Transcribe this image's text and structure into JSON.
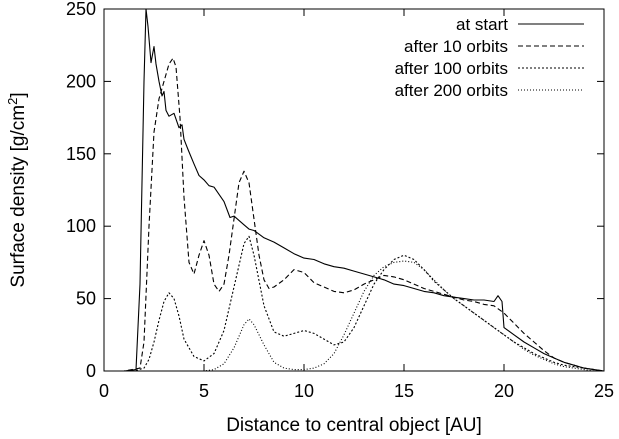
{
  "chart_data": {
    "type": "line",
    "xlabel": "Distance to central object [AU]",
    "ylabel": "Surface density [g/cm",
    "ylabel_superscript": "2",
    "ylabel_suffix": "]",
    "xlim": [
      0,
      25
    ],
    "ylim": [
      0,
      250
    ],
    "xticks": [
      0,
      5,
      10,
      15,
      20,
      25
    ],
    "yticks": [
      0,
      50,
      100,
      150,
      200,
      250
    ],
    "legend_position": "top-right",
    "grid": false,
    "series": [
      {
        "name": "at start",
        "dash": "solid",
        "x": [
          0.0,
          1.0,
          1.6,
          1.8,
          2.0,
          2.1,
          2.2,
          2.35,
          2.5,
          2.6,
          2.75,
          2.9,
          3.0,
          3.1,
          3.25,
          3.5,
          3.75,
          3.9,
          4.0,
          4.2,
          4.5,
          4.75,
          5.0,
          5.25,
          5.5,
          6.0,
          6.3,
          6.5,
          7.0,
          7.25,
          7.5,
          8.0,
          8.5,
          9.0,
          9.5,
          10.0,
          10.5,
          11.0,
          11.5,
          12.0,
          12.5,
          13.0,
          13.5,
          14.0,
          14.5,
          15.0,
          15.5,
          16.0,
          16.5,
          17.0,
          17.5,
          18.0,
          18.5,
          19.0,
          19.5,
          19.7,
          19.9,
          20.0,
          20.5,
          21.0,
          21.5,
          22.0,
          22.5,
          23.0,
          23.5,
          24.0,
          24.5,
          25.0
        ],
        "y": [
          0,
          0,
          1,
          60,
          200,
          250,
          238,
          213,
          224,
          212,
          200,
          190,
          193,
          180,
          176,
          178,
          168,
          170,
          160,
          153,
          143,
          135,
          132,
          128,
          127,
          117,
          106,
          107,
          101,
          98,
          97,
          92,
          89,
          85,
          81,
          78,
          77,
          74,
          72,
          71,
          69,
          67,
          65,
          63,
          60,
          59,
          57,
          55,
          54,
          52,
          51,
          50,
          49,
          49,
          48,
          52,
          48,
          30,
          25,
          20,
          16,
          12,
          9,
          6,
          4,
          2,
          1,
          0
        ]
      },
      {
        "name": "after 10 orbits",
        "dash": "5,3",
        "x": [
          0.0,
          1.0,
          1.8,
          2.0,
          2.25,
          2.5,
          2.75,
          3.0,
          3.25,
          3.45,
          3.6,
          3.8,
          4.0,
          4.25,
          4.5,
          4.75,
          5.0,
          5.25,
          5.5,
          5.75,
          6.0,
          6.25,
          6.5,
          6.75,
          7.0,
          7.25,
          7.5,
          7.75,
          8.0,
          8.25,
          8.5,
          9.0,
          9.5,
          10.0,
          10.5,
          11.0,
          11.5,
          12.0,
          12.5,
          13.0,
          13.5,
          14.0,
          14.5,
          15.0,
          15.5,
          16.0,
          16.5,
          17.0,
          17.5,
          18.0,
          18.5,
          19.0,
          19.5,
          20.0,
          20.5,
          21.0,
          21.5,
          22.0,
          22.5,
          23.0,
          23.5,
          24.0,
          24.5,
          25.0
        ],
        "y": [
          0,
          0,
          2,
          20,
          100,
          165,
          188,
          200,
          212,
          216,
          210,
          175,
          120,
          75,
          67,
          80,
          90,
          80,
          60,
          55,
          60,
          80,
          105,
          130,
          138,
          130,
          105,
          80,
          63,
          57,
          58,
          63,
          70,
          68,
          61,
          58,
          55,
          54,
          56,
          60,
          63,
          66,
          65,
          63,
          60,
          57,
          55,
          53,
          51,
          49,
          48,
          46,
          45,
          40,
          33,
          26,
          20,
          14,
          9,
          6,
          4,
          2,
          1,
          0
        ]
      },
      {
        "name": "after 100 orbits",
        "dash": "2,2",
        "x": [
          0.0,
          1.5,
          2.0,
          2.25,
          2.5,
          2.75,
          3.0,
          3.25,
          3.5,
          3.75,
          4.0,
          4.5,
          5.0,
          5.5,
          6.0,
          6.5,
          7.0,
          7.25,
          7.5,
          8.0,
          8.5,
          9.0,
          9.5,
          10.0,
          10.5,
          11.0,
          11.5,
          12.0,
          12.5,
          13.0,
          13.5,
          14.0,
          14.5,
          15.0,
          15.5,
          16.0,
          16.5,
          17.0,
          17.5,
          18.0,
          18.5,
          19.0,
          19.5,
          20.0,
          20.5,
          21.0,
          21.5,
          22.0,
          22.5,
          23.0,
          23.5,
          24.0,
          24.5,
          25.0
        ],
        "y": [
          0,
          0,
          2,
          8,
          20,
          35,
          48,
          54,
          50,
          38,
          22,
          10,
          7,
          12,
          28,
          58,
          88,
          93,
          80,
          45,
          27,
          24,
          26,
          28,
          26,
          22,
          18,
          20,
          30,
          45,
          60,
          70,
          77,
          80,
          77,
          70,
          62,
          56,
          50,
          45,
          40,
          35,
          30,
          25,
          20,
          16,
          12,
          9,
          6,
          4,
          3,
          2,
          1,
          0
        ]
      },
      {
        "name": "after 200 orbits",
        "dash": "1,2",
        "x": [
          0.0,
          1.0,
          2.0,
          3.0,
          4.0,
          5.0,
          5.5,
          6.0,
          6.5,
          7.0,
          7.25,
          7.5,
          8.0,
          8.5,
          9.0,
          9.5,
          10.0,
          10.5,
          11.0,
          11.5,
          12.0,
          12.5,
          13.0,
          13.5,
          14.0,
          14.5,
          15.0,
          15.5,
          16.0,
          16.5,
          17.0,
          17.5,
          18.0,
          18.5,
          19.0,
          19.5,
          20.0,
          20.5,
          21.0,
          21.5,
          22.0,
          22.5,
          23.0,
          23.5,
          24.0,
          24.5,
          25.0
        ],
        "y": [
          0,
          0,
          0,
          0,
          0,
          0,
          1,
          5,
          16,
          32,
          36,
          32,
          18,
          6,
          2,
          1,
          1,
          2,
          5,
          12,
          25,
          40,
          55,
          66,
          72,
          75,
          76,
          75,
          70,
          63,
          56,
          50,
          45,
          40,
          35,
          30,
          25,
          20,
          15,
          11,
          8,
          5,
          3,
          2,
          1,
          0,
          0
        ]
      }
    ]
  }
}
